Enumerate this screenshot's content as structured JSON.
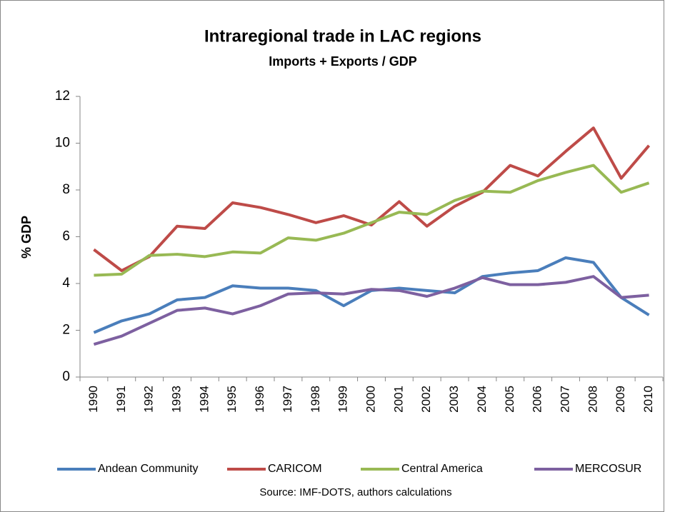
{
  "chart_data": {
    "type": "line",
    "title": "Intraregional trade in LAC regions",
    "subtitle": "Imports + Exports / GDP",
    "y_label": "% GDP",
    "source": "Source: IMF-DOTS, authors calculations",
    "categories": [
      "1990",
      "1991",
      "1992",
      "1993",
      "1994",
      "1995",
      "1996",
      "1997",
      "1998",
      "1999",
      "2000",
      "2001",
      "2002",
      "2003",
      "2004",
      "2005",
      "2006",
      "2007",
      "2008",
      "2009",
      "2010"
    ],
    "series": [
      {
        "name": "Andean Community",
        "color": "#4a7ebb",
        "values": [
          1.9,
          2.4,
          2.7,
          3.3,
          3.4,
          3.9,
          3.8,
          3.8,
          3.7,
          3.05,
          3.7,
          3.8,
          3.7,
          3.6,
          4.3,
          4.45,
          4.55,
          5.1,
          4.9,
          3.4,
          2.65
        ]
      },
      {
        "name": "CARICOM",
        "color": "#be4b48",
        "values": [
          5.45,
          4.55,
          5.15,
          6.45,
          6.35,
          7.45,
          7.25,
          6.95,
          6.6,
          6.9,
          6.5,
          7.5,
          6.45,
          7.3,
          7.9,
          9.05,
          8.6,
          9.65,
          10.65,
          8.5,
          9.9
        ]
      },
      {
        "name": "Central America",
        "color": "#98b954",
        "values": [
          4.35,
          4.4,
          5.2,
          5.25,
          5.15,
          5.35,
          5.3,
          5.95,
          5.85,
          6.15,
          6.6,
          7.05,
          6.95,
          7.55,
          7.95,
          7.9,
          8.4,
          8.75,
          9.05,
          7.9,
          8.3
        ]
      },
      {
        "name": "MERCOSUR",
        "color": "#7d60a0",
        "values": [
          1.4,
          1.75,
          2.3,
          2.85,
          2.95,
          2.7,
          3.05,
          3.55,
          3.6,
          3.55,
          3.75,
          3.7,
          3.45,
          3.8,
          4.25,
          3.95,
          3.95,
          4.05,
          4.3,
          3.4,
          3.5
        ]
      }
    ],
    "ylim": [
      0,
      12
    ],
    "yticks": [
      0,
      2,
      4,
      6,
      8,
      10,
      12
    ],
    "grid": false,
    "legend": "bottom"
  }
}
